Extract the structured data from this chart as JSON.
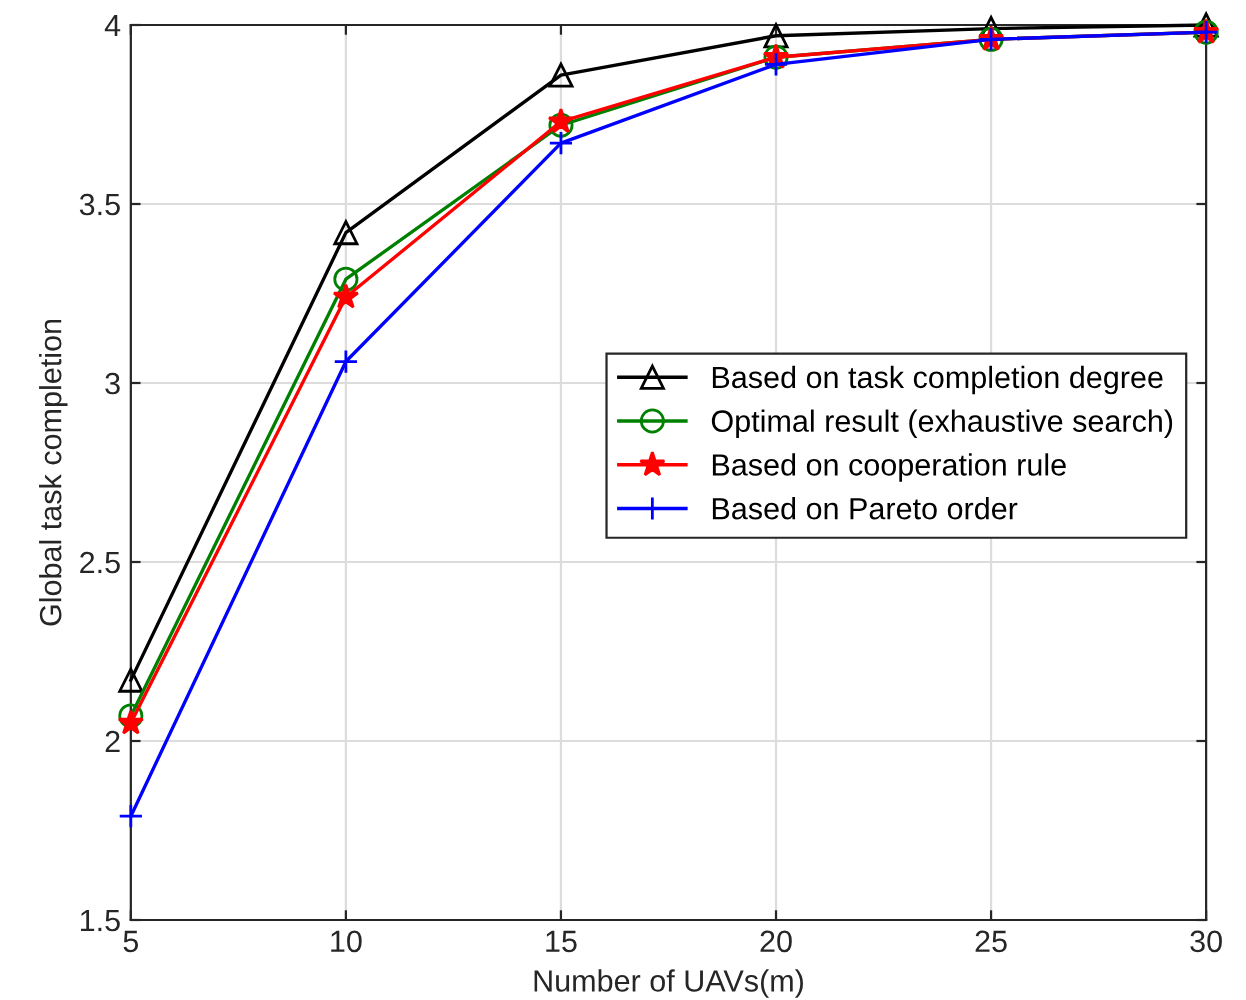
{
  "chart_data": {
    "type": "line",
    "xlabel": "Number of UAVs(m)",
    "ylabel": "Global task completion",
    "x": [
      5,
      10,
      15,
      20,
      25,
      30
    ],
    "series": [
      {
        "name": "Based on task completion degree",
        "color": "#000000",
        "marker": "triangle",
        "values": [
          2.17,
          3.42,
          3.86,
          3.97,
          3.99,
          4.0
        ]
      },
      {
        "name": "Optimal result (exhaustive search)",
        "color": "#008000",
        "marker": "circle",
        "values": [
          2.07,
          3.29,
          3.72,
          3.91,
          3.96,
          3.98
        ]
      },
      {
        "name": "Based on cooperation rule",
        "color": "#ff0000",
        "marker": "star",
        "values": [
          2.05,
          3.24,
          3.73,
          3.91,
          3.96,
          3.98
        ]
      },
      {
        "name": "Based on Pareto order",
        "color": "#0000ff",
        "marker": "cross",
        "values": [
          1.79,
          3.06,
          3.67,
          3.89,
          3.96,
          3.98
        ]
      }
    ],
    "xlim": [
      5,
      30
    ],
    "xticks": [
      5,
      10,
      15,
      20,
      25,
      30
    ],
    "ylim": [
      1.5,
      4
    ],
    "yticks": [
      1.5,
      2,
      2.5,
      3,
      3.5,
      4
    ],
    "grid": true,
    "legend": "center right",
    "line_style": "solid"
  }
}
